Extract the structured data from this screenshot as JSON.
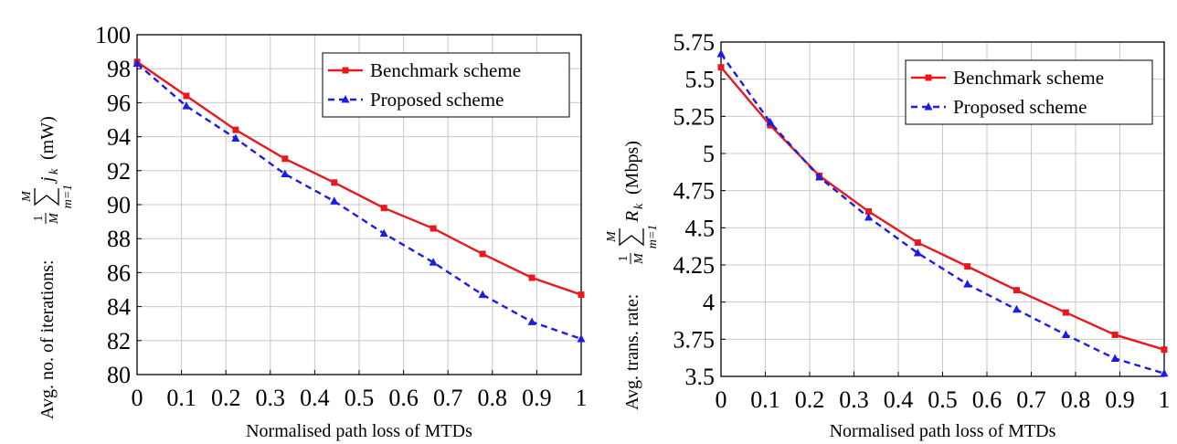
{
  "chart_data": [
    {
      "type": "line",
      "title": "",
      "xlabel": "Normalised path loss of MTDs",
      "ylabel": "Avg. no. of iterations: ",
      "ylabel_unit": "(mW)",
      "ylabel_math": {
        "frac_num": "1",
        "frac_den": "M",
        "sum_top": "M",
        "sum_bottom": "m=1",
        "var": "j",
        "sub": "k"
      },
      "xlim": [
        0,
        1
      ],
      "ylim": [
        80,
        100
      ],
      "xticks": [
        "0",
        "0.1",
        "0.2",
        "0.3",
        "0.4",
        "0.5",
        "0.6",
        "0.7",
        "0.8",
        "0.9",
        "1"
      ],
      "yticks": [
        "80",
        "82",
        "84",
        "86",
        "88",
        "90",
        "92",
        "94",
        "96",
        "98",
        "100"
      ],
      "grid": true,
      "legend_position": "top-right",
      "x": [
        0,
        0.111,
        0.222,
        0.333,
        0.444,
        0.556,
        0.667,
        0.778,
        0.889,
        1.0
      ],
      "series": [
        {
          "name": "Benchmark scheme",
          "color": "#e8191e",
          "style": "solid",
          "marker": "square",
          "values": [
            98.4,
            96.4,
            94.4,
            92.7,
            91.3,
            89.8,
            88.6,
            87.1,
            85.7,
            84.7
          ]
        },
        {
          "name": "Proposed scheme",
          "color": "#1c1ce8",
          "style": "dashed",
          "marker": "triangle",
          "values": [
            98.3,
            95.8,
            93.9,
            91.8,
            90.2,
            88.3,
            86.6,
            84.7,
            83.1,
            82.1
          ]
        }
      ]
    },
    {
      "type": "line",
      "title": "",
      "xlabel": "Normalised path loss of MTDs",
      "ylabel": "Avg. trans. rate: ",
      "ylabel_unit": "(Mbps)",
      "ylabel_math": {
        "frac_num": "1",
        "frac_den": "M",
        "sum_top": "M",
        "sum_bottom": "m=1",
        "var": "R",
        "sub": "k"
      },
      "xlim": [
        0,
        1
      ],
      "ylim": [
        3.5,
        5.75
      ],
      "xticks": [
        "0",
        "0.1",
        "0.2",
        "0.3",
        "0.4",
        "0.5",
        "0.6",
        "0.7",
        "0.8",
        "0.9",
        "1"
      ],
      "yticks": [
        "3.5",
        "3.75",
        "4",
        "4.25",
        "4.5",
        "4.75",
        "5",
        "5.25",
        "5.5",
        "5.75"
      ],
      "grid": true,
      "legend_position": "top-right",
      "x": [
        0,
        0.111,
        0.222,
        0.333,
        0.444,
        0.556,
        0.667,
        0.778,
        0.889,
        1.0
      ],
      "series": [
        {
          "name": "Benchmark scheme",
          "color": "#e8191e",
          "style": "solid",
          "marker": "square",
          "values": [
            5.58,
            5.19,
            4.85,
            4.61,
            4.4,
            4.24,
            4.08,
            3.93,
            3.78,
            3.68
          ]
        },
        {
          "name": "Proposed scheme",
          "color": "#1c1ce8",
          "style": "dashed",
          "marker": "triangle",
          "values": [
            5.67,
            5.21,
            4.84,
            4.57,
            4.33,
            4.12,
            3.95,
            3.78,
            3.62,
            3.52
          ]
        }
      ]
    }
  ]
}
